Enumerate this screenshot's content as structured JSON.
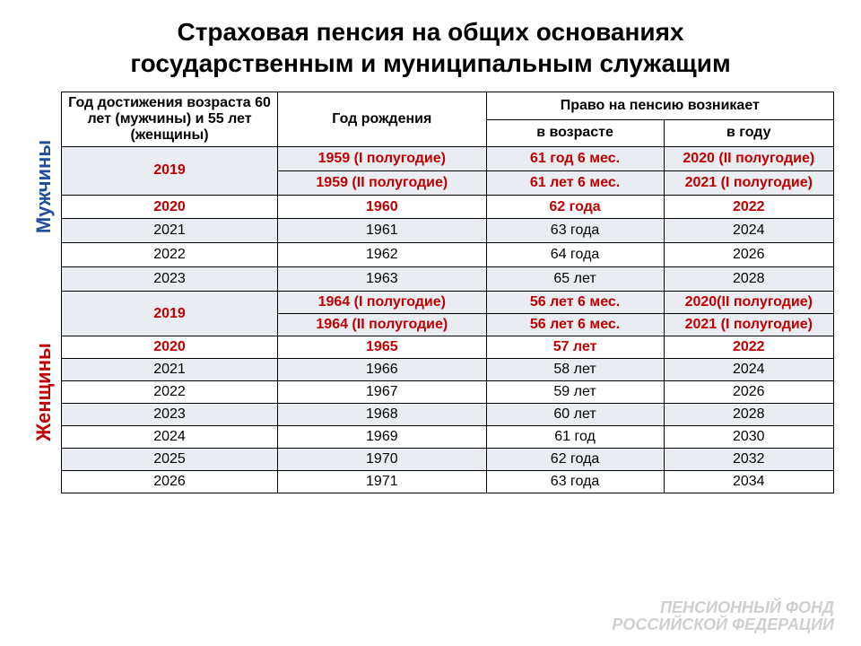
{
  "title_line1": "Страховая пенсия на общих основаниях",
  "title_line2": "государственным и муниципальным служащим",
  "header": {
    "col1": "Год достижения возраста 60 лет  (мужчины) и 55 лет (женщины)",
    "col2": "Год рождения",
    "col34_top": "Право на пенсию возникает",
    "col3": "в возрасте",
    "col4": "в году"
  },
  "labels": {
    "men": "Мужчины",
    "women": "Женщины"
  },
  "colors": {
    "highlight": "#c00000",
    "side_blue": "#1f4f9c",
    "stripe": "#e9ecf0",
    "border": "#000000"
  },
  "men_rows": [
    {
      "alt": true,
      "span": 2,
      "achieve": "2019",
      "birth": "1959 (I полугодие)",
      "age": "61 год 6 мес.",
      "year": "2020 (II полугодие)",
      "hl": true
    },
    {
      "alt": true,
      "cont": true,
      "birth": "1959  (II полугодие)",
      "age": "61 лет 6 мес.",
      "year": "2021 (I полугодие)",
      "hl": true
    },
    {
      "alt": false,
      "achieve": "2020",
      "birth": "1960",
      "age": "62 года",
      "year": "2022",
      "hl": true
    },
    {
      "alt": true,
      "achieve": "2021",
      "birth": "1961",
      "age": "63 года",
      "year": "2024",
      "hl": false
    },
    {
      "alt": false,
      "achieve": "2022",
      "birth": "1962",
      "age": "64 года",
      "year": "2026",
      "hl": false
    },
    {
      "alt": true,
      "achieve": "2023",
      "birth": "1963",
      "age": "65 лет",
      "year": "2028",
      "hl": false
    }
  ],
  "women_rows": [
    {
      "alt": true,
      "span": 2,
      "achieve": "2019",
      "birth": "1964 (I полугодие)",
      "age": "56 лет 6 мес.",
      "year": "2020(II полугодие)",
      "hl": true
    },
    {
      "alt": true,
      "cont": true,
      "birth": "1964  (II полугодие)",
      "age": "56 лет 6 мес.",
      "year": "2021 (I полугодие)",
      "hl": true
    },
    {
      "alt": false,
      "achieve": "2020",
      "birth": "1965",
      "age": "57 лет",
      "year": "2022",
      "hl": true
    },
    {
      "alt": true,
      "achieve": "2021",
      "birth": "1966",
      "age": "58 лет",
      "year": "2024",
      "hl": false
    },
    {
      "alt": false,
      "achieve": "2022",
      "birth": "1967",
      "age": "59 лет",
      "year": "2026",
      "hl": false
    },
    {
      "alt": true,
      "achieve": "2023",
      "birth": "1968",
      "age": "60 лет",
      "year": "2028",
      "hl": false
    },
    {
      "alt": false,
      "achieve": "2024",
      "birth": "1969",
      "age": "61 год",
      "year": "2030",
      "hl": false
    },
    {
      "alt": true,
      "achieve": "2025",
      "birth": "1970",
      "age": "62 года",
      "year": "2032",
      "hl": false
    },
    {
      "alt": false,
      "achieve": "2026",
      "birth": "1971",
      "age": "63 года",
      "year": "2034",
      "hl": false
    }
  ],
  "footer": {
    "line1": "ПЕНСИОННЫЙ ФОНД",
    "line2": "РОССИЙСКОЙ ФЕДЕРАЦИИ"
  }
}
